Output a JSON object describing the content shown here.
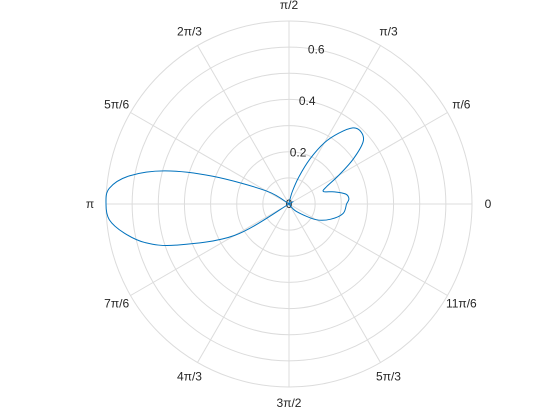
{
  "chart_data": {
    "type": "polar-line",
    "title": "",
    "theta_unit": "radians",
    "theta_tick_labels": [
      "0",
      "π/6",
      "π/3",
      "π/2",
      "2π/3",
      "5π/6",
      "π",
      "7π/6",
      "4π/3",
      "3π/2",
      "5π/3",
      "11π/6"
    ],
    "theta_ticks_fraction_of_pi": [
      0,
      0.16667,
      0.33333,
      0.5,
      0.66667,
      0.83333,
      1,
      1.16667,
      1.33333,
      1.5,
      1.66667,
      1.83333
    ],
    "r_tick_labels": [
      "0",
      "0.2",
      "0.4",
      "0.6"
    ],
    "r_ticks": [
      0,
      0.2,
      0.4,
      0.6
    ],
    "r_grid_circles": [
      0.1,
      0.2,
      0.3,
      0.4,
      0.5,
      0.6,
      0.7
    ],
    "rlim": [
      0,
      0.7
    ],
    "grid": true,
    "series": [
      {
        "color": "#0072bd",
        "theta_deg": [
          0,
          5,
          10,
          15,
          20,
          25,
          30,
          35,
          40,
          45,
          50,
          55,
          60,
          65,
          70,
          75,
          80,
          90,
          120,
          150,
          160,
          165,
          170,
          175,
          180,
          185,
          190,
          195,
          200,
          210,
          240,
          270,
          300,
          315,
          330,
          340,
          350,
          360
        ],
        "r": [
          0.22,
          0.23,
          0.22,
          0.18,
          0.14,
          0.16,
          0.22,
          0.3,
          0.37,
          0.39,
          0.38,
          0.33,
          0.27,
          0.19,
          0.11,
          0.05,
          0.01,
          0,
          0,
          0.1,
          0.31,
          0.49,
          0.62,
          0.69,
          0.7,
          0.69,
          0.64,
          0.57,
          0.46,
          0.24,
          0,
          0,
          0,
          0.04,
          0.12,
          0.17,
          0.21,
          0.22
        ]
      }
    ]
  }
}
